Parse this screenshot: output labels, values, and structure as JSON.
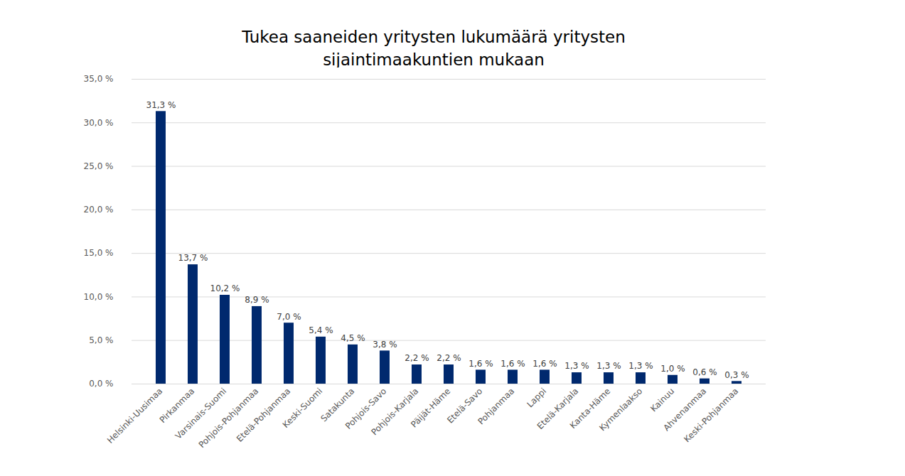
{
  "chart_data": {
    "type": "bar",
    "title": "Tukea saaneiden yritysten lukumäärä yritysten sijaintimaakuntien mukaan",
    "categories": [
      "Helsinki-Uusimaa",
      "Pirkanmaa",
      "Varsinais-Suomi",
      "Pohjois-Pohjanmaa",
      "Etelä-Pohjanmaa",
      "Keski-Suomi",
      "Satakunta",
      "Pohjois-Savo",
      "Pohjois-Karjala",
      "Päijät-Häme",
      "Etelä-Savo",
      "Pohjanmaa",
      "Lappi",
      "Etelä-Karjala",
      "Kanta-Häme",
      "Kymenlaakso",
      "Kainuu",
      "Ahvenanmaa",
      "Keski-Pohjanmaa"
    ],
    "values": [
      31.3,
      13.7,
      10.2,
      8.9,
      7.0,
      5.4,
      4.5,
      3.8,
      2.2,
      2.2,
      1.6,
      1.6,
      1.6,
      1.3,
      1.3,
      1.3,
      1.0,
      0.6,
      0.3
    ],
    "value_labels": [
      "31,3 %",
      "13,7 %",
      "10,2 %",
      "8,9 %",
      "7,0 %",
      "5,4 %",
      "4,5 %",
      "3,8 %",
      "2,2 %",
      "2,2 %",
      "1,6 %",
      "1,6 %",
      "1,6 %",
      "1,3 %",
      "1,3 %",
      "1,3 %",
      "1,0 %",
      "0,6 %",
      "0,3 %"
    ],
    "color": "#00296e",
    "ylim": [
      0,
      35
    ],
    "yticks": [
      {
        "value": 0,
        "label": "0,0 %"
      },
      {
        "value": 5,
        "label": "5,0 %"
      },
      {
        "value": 10,
        "label": "10,0 %"
      },
      {
        "value": 15,
        "label": "15,0 %"
      },
      {
        "value": 20,
        "label": "20,0 %"
      },
      {
        "value": 25,
        "label": "25,0 %"
      },
      {
        "value": 30,
        "label": "30,0 %"
      },
      {
        "value": 35,
        "label": "35,0 %"
      }
    ],
    "grid": true,
    "data_labels": true
  }
}
